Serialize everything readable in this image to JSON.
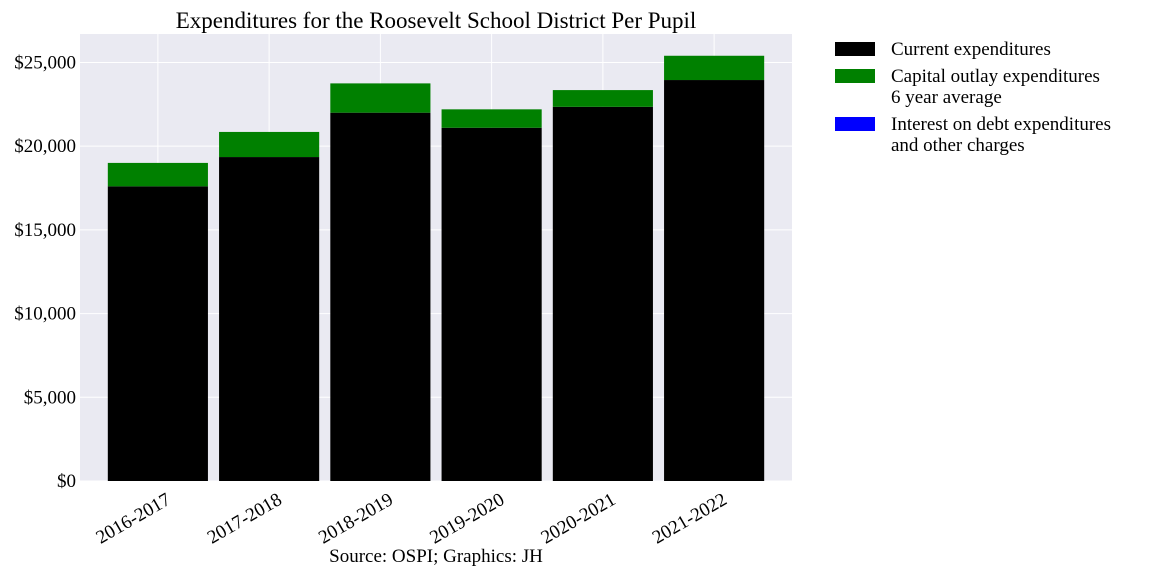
{
  "chart_data": {
    "type": "bar",
    "stacked": true,
    "title": "Expenditures for the Roosevelt School District Per Pupil",
    "xlabel": "Source: OSPI; Graphics: JH",
    "ylabel": "",
    "categories": [
      "2016-2017",
      "2017-2018",
      "2018-2019",
      "2019-2020",
      "2020-2021",
      "2021-2022"
    ],
    "series": [
      {
        "name": "Current expenditures",
        "color": "#000000",
        "values": [
          17600,
          19350,
          22000,
          21100,
          22350,
          23950
        ]
      },
      {
        "name": "Capital outlay expenditures\n6 year average",
        "color": "#008000",
        "values": [
          1400,
          1500,
          1750,
          1100,
          1000,
          1450
        ]
      },
      {
        "name": "Interest on debt expenditures\nand other charges",
        "color": "#0000ff",
        "values": [
          0,
          0,
          0,
          0,
          0,
          0
        ]
      }
    ],
    "ylim": [
      0,
      26700
    ],
    "yticks": [
      0,
      5000,
      10000,
      15000,
      20000,
      25000
    ],
    "ytick_labels": [
      "$0",
      "$5,000",
      "$10,000",
      "$15,000",
      "$20,000",
      "$25,000"
    ],
    "grid": true,
    "legend_position": "outside-right",
    "background": "#eaeaf2"
  }
}
